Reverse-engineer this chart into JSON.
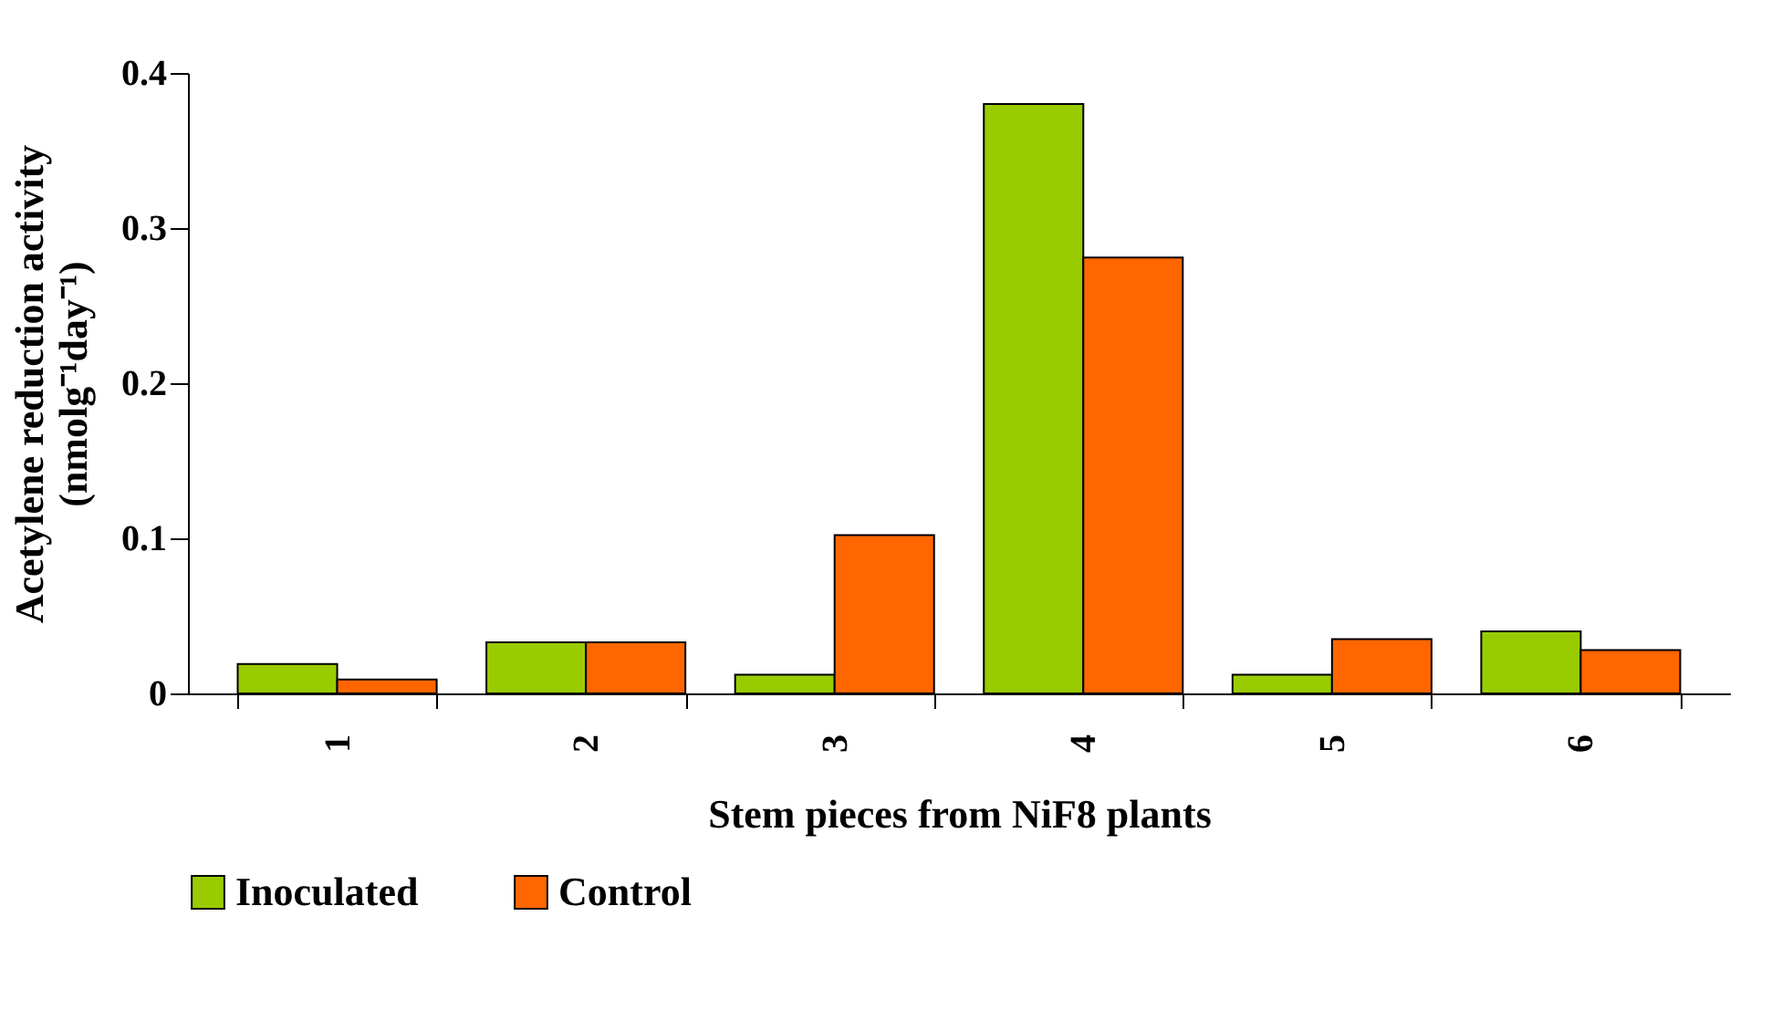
{
  "chart_data": {
    "type": "bar",
    "xlabel": "Stem pieces from NiF8 plants",
    "ylabel": [
      "Acetylene reduction activity",
      "(nmolg⁻¹day⁻¹)"
    ],
    "categories": [
      "1",
      "2",
      "3",
      "4",
      "5",
      "6"
    ],
    "series": [
      {
        "name": "Inoculated",
        "color": "#99cc00",
        "values": [
          0.019,
          0.033,
          0.012,
          0.38,
          0.012,
          0.04
        ]
      },
      {
        "name": "Control",
        "color": "#ff6600",
        "values": [
          0.009,
          0.033,
          0.102,
          0.281,
          0.035,
          0.028
        ]
      }
    ],
    "ylim": [
      0,
      0.4
    ],
    "yticks": [
      0,
      0.1,
      0.2,
      0.3,
      0.4
    ],
    "grid": false,
    "legend": "bottom"
  }
}
